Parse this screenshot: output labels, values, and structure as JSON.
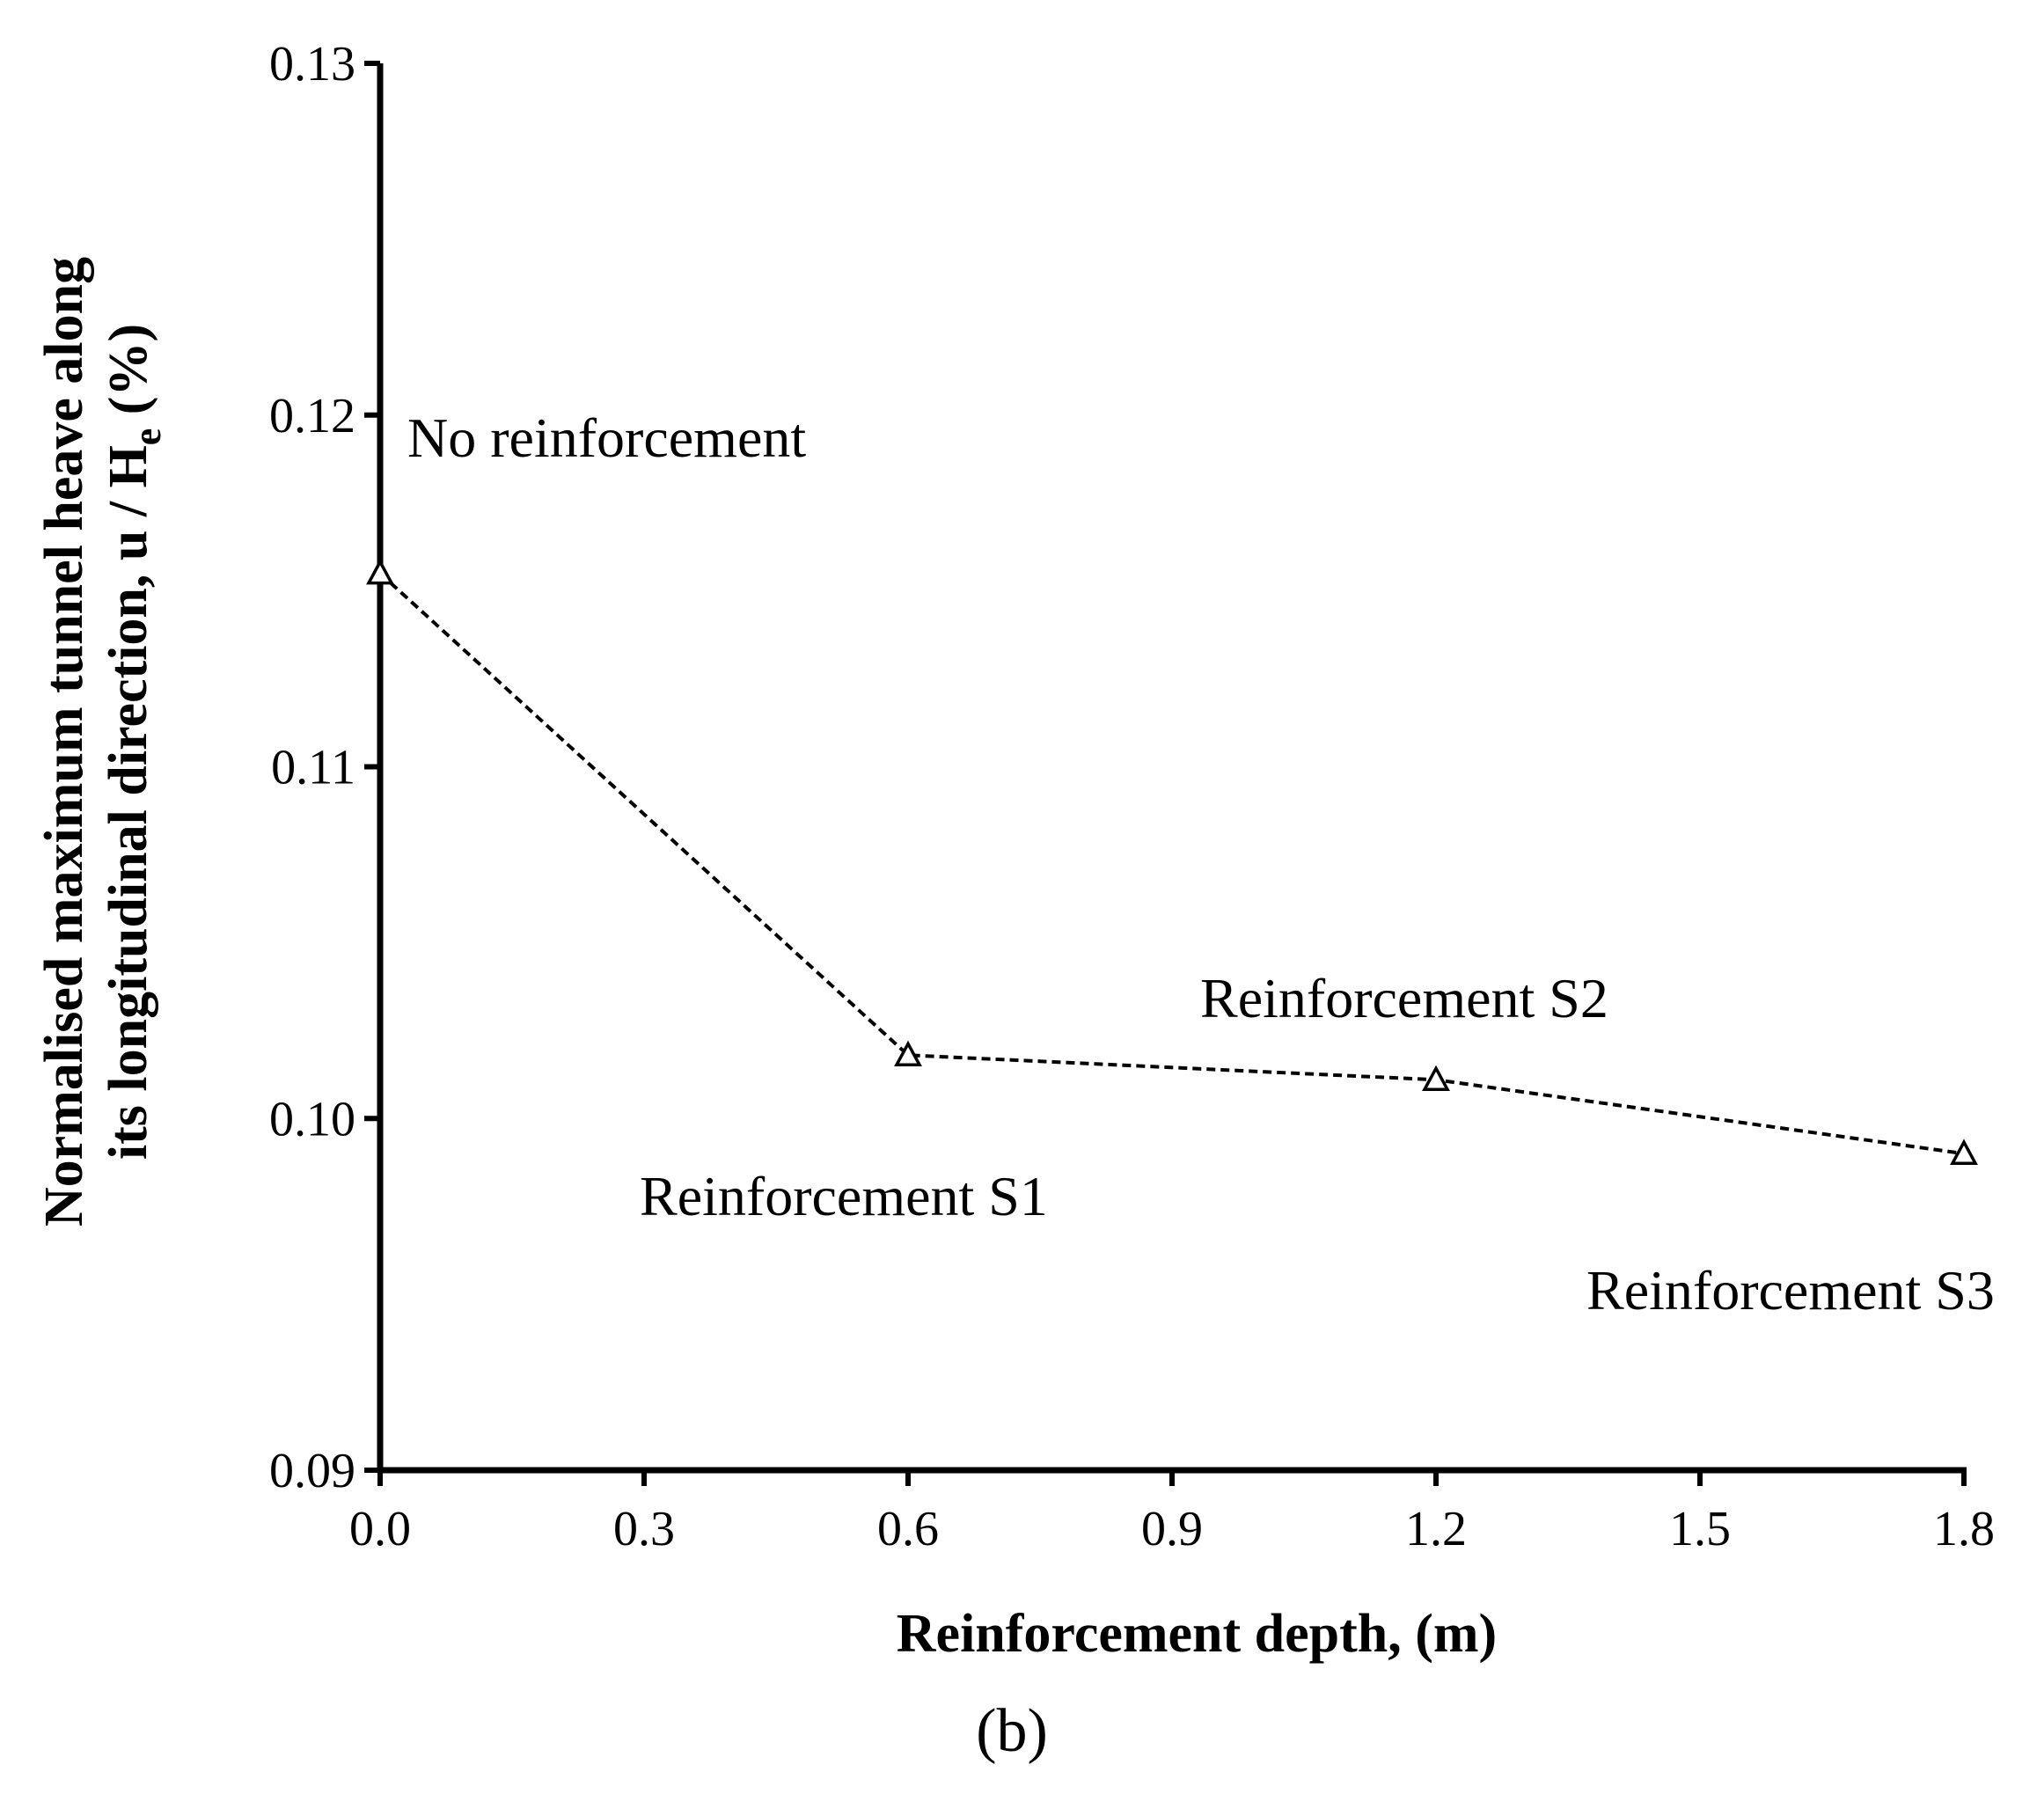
{
  "chart_data": {
    "type": "line",
    "panel_label": "(b)",
    "xlabel": "Reinforcement depth, (m)",
    "ylabel": {
      "line1": "Normalised maximum tunnel heave along",
      "line2_main": "its longitudinal direction, u / H",
      "line2_sub": "e",
      "line2_end": " (%)"
    },
    "xlim": [
      0.0,
      1.8
    ],
    "ylim": [
      0.09,
      0.13
    ],
    "xticks": [
      "0.0",
      "0.3",
      "0.6",
      "0.9",
      "1.2",
      "1.5",
      "1.8"
    ],
    "xtick_values": [
      0.0,
      0.3,
      0.6,
      0.9,
      1.2,
      1.5,
      1.8
    ],
    "yticks": [
      "0.09",
      "0.10",
      "0.11",
      "0.12",
      "0.13"
    ],
    "ytick_values": [
      0.09,
      0.1,
      0.11,
      0.12,
      0.13
    ],
    "grid": false,
    "series": [
      {
        "x": [
          0.0,
          0.6,
          1.2,
          1.8
        ],
        "y": [
          0.1155,
          0.1018,
          0.1011,
          0.099
        ],
        "marker": "open-triangle",
        "line_style": "dashed",
        "color": "#000000"
      }
    ],
    "annotations": [
      {
        "text": "No reinforcement"
      },
      {
        "text": "Reinforcement S1"
      },
      {
        "text": "Reinforcement S2"
      },
      {
        "text": "Reinforcement S3"
      }
    ]
  }
}
